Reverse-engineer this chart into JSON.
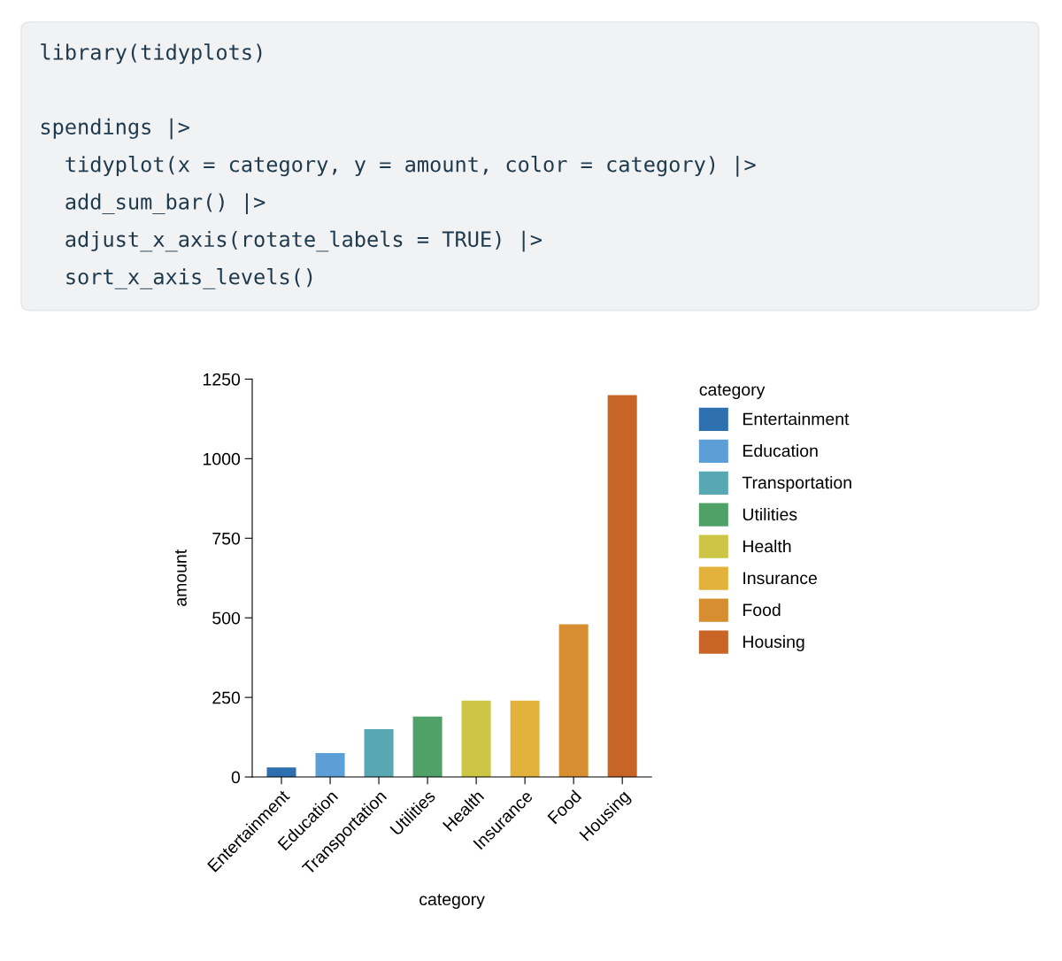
{
  "chart_data": {
    "type": "bar",
    "xlabel": "category",
    "ylabel": "amount",
    "legend_title": "category",
    "categories": [
      "Entertainment",
      "Education",
      "Transportation",
      "Utilities",
      "Health",
      "Insurance",
      "Food",
      "Housing"
    ],
    "series": [
      {
        "name": "Entertainment",
        "color": "#2e6fb0",
        "values": [
          30,
          null,
          null,
          null,
          null,
          null,
          null,
          null
        ]
      },
      {
        "name": "Education",
        "color": "#5c9fd6",
        "values": [
          null,
          75,
          null,
          null,
          null,
          null,
          null,
          null
        ]
      },
      {
        "name": "Transportation",
        "color": "#58a8b3",
        "values": [
          null,
          null,
          150,
          null,
          null,
          null,
          null,
          null
        ]
      },
      {
        "name": "Utilities",
        "color": "#4fa167",
        "values": [
          null,
          null,
          null,
          190,
          null,
          null,
          null,
          null
        ]
      },
      {
        "name": "Health",
        "color": "#cdc545",
        "values": [
          null,
          null,
          null,
          null,
          240,
          null,
          null,
          null
        ]
      },
      {
        "name": "Insurance",
        "color": "#e3b23c",
        "values": [
          null,
          null,
          null,
          null,
          null,
          240,
          null,
          null
        ]
      },
      {
        "name": "Food",
        "color": "#d68e31",
        "values": [
          null,
          null,
          null,
          null,
          null,
          null,
          480,
          null
        ]
      },
      {
        "name": "Housing",
        "color": "#c76426",
        "values": [
          null,
          null,
          null,
          null,
          null,
          null,
          null,
          1200
        ]
      }
    ],
    "ylim": [
      0,
      1250
    ],
    "yticks": [
      0,
      250,
      500,
      750,
      1000,
      1250
    ],
    "grid": false,
    "legend": "right",
    "annotations": [
      "library(tidyplots)",
      "spendings |>",
      "  tidyplot(x = category, y = amount, color = category) |>",
      "  add_sum_bar() |>",
      "  adjust_x_axis(rotate_labels = TRUE) |>",
      "  sort_x_axis_levels()"
    ]
  }
}
